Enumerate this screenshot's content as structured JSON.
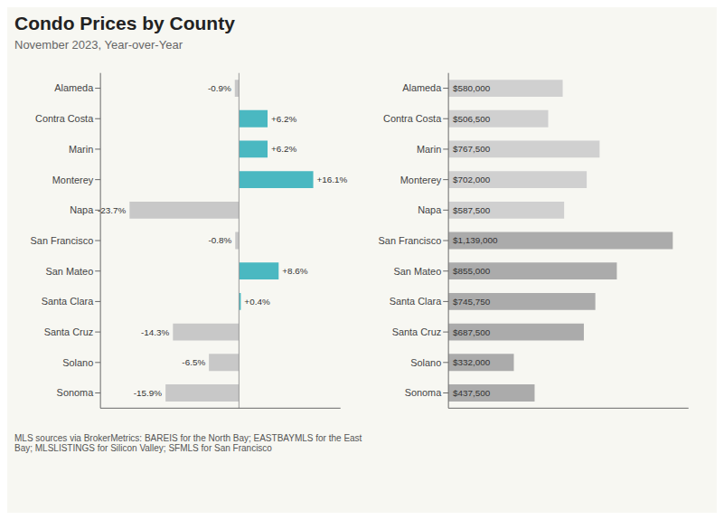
{
  "chart_data": [
    {
      "type": "bar",
      "orientation": "horizontal",
      "title": "Condo Prices by County",
      "subtitle": "November 2023, Year-over-Year",
      "annotations": [
        "MLS sources via BrokerMetrics: BAREIS for the North Bay; EASTBAYMLS for the East\nBay; MLSLISTINGS for Silicon Valley; SFMLS for San Francisco"
      ],
      "categories": [
        "Alameda",
        "Contra Costa",
        "Marin",
        "Monterey",
        "Napa",
        "San Francisco",
        "San Mateo",
        "Santa Clara",
        "Santa Cruz",
        "Solano",
        "Sonoma"
      ],
      "values": [
        -0.9,
        6.2,
        6.2,
        16.1,
        -23.7,
        -0.8,
        8.6,
        0.4,
        -14.3,
        -6.5,
        -15.9
      ],
      "value_labels": [
        "-0.9%",
        "+6.2%",
        "+6.2%",
        "+16.1%",
        "-23.7%",
        "-0.8%",
        "+8.6%",
        "+0.4%",
        "-14.3%",
        "-6.5%",
        "-15.9%"
      ],
      "colors": [
        "#c8c8c8",
        "#4ab8c1",
        "#4ab8c1",
        "#4ab8c1",
        "#c8c8c8",
        "#c8c8c8",
        "#4ab8c1",
        "#4ab8c1",
        "#c8c8c8",
        "#c8c8c8",
        "#c8c8c8"
      ],
      "xlim": [
        -30,
        22
      ],
      "data_labels": true,
      "tick_labels": "y",
      "grid": false
    },
    {
      "type": "bar",
      "orientation": "horizontal",
      "categories": [
        "Alameda",
        "Contra Costa",
        "Marin",
        "Monterey",
        "Napa",
        "San Francisco",
        "San Mateo",
        "Santa Clara",
        "Santa Cruz",
        "Solano",
        "Sonoma"
      ],
      "values": [
        580000,
        506500,
        767500,
        702000,
        587500,
        1139000,
        855000,
        745750,
        687500,
        332000,
        437500
      ],
      "value_labels": [
        "$580,000",
        "$506,500",
        "$767,500",
        "$702,000",
        "$587,500",
        "$1,139,000",
        "$855,000",
        "$745,750",
        "$687,500",
        "$332,000",
        "$437,500"
      ],
      "colors": [
        "#d0d0d0",
        "#d0d0d0",
        "#d0d0d0",
        "#d0d0d0",
        "#d0d0d0",
        "#ababab",
        "#ababab",
        "#ababab",
        "#ababab",
        "#ababab",
        "#ababab"
      ],
      "xlim": [
        0,
        1218730
      ],
      "data_labels": true,
      "tick_labels": "y",
      "grid": false
    }
  ]
}
